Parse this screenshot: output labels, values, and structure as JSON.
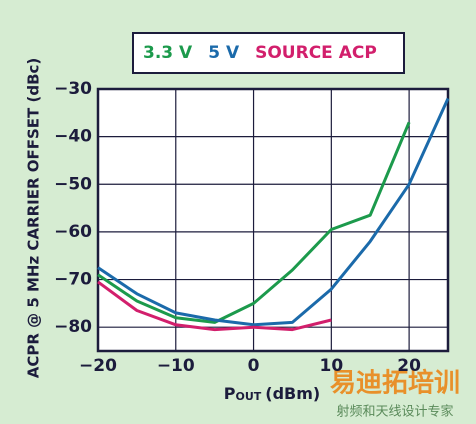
{
  "chart_data": {
    "type": "line",
    "y_label": "ACPR @ 5 MHz CARRIER OFFSET (dBc)",
    "x_label": {
      "symbol": "P",
      "subscript": "OUT",
      "unit": "(dBm)"
    },
    "x": [
      -20,
      -15,
      -10,
      -5,
      0,
      5,
      10,
      15,
      20,
      25
    ],
    "series": [
      {
        "name": "3.3 V",
        "color": "#1c9a4c",
        "values": [
          -69,
          -74.5,
          -78,
          -79,
          -75,
          -68,
          -59.5,
          -56.5,
          -37,
          null
        ]
      },
      {
        "name": "5 V",
        "color": "#1b6aaa",
        "values": [
          -67.5,
          -73,
          -77,
          -78.5,
          -79.5,
          -79,
          -72,
          -62,
          -50,
          -32
        ]
      },
      {
        "name": "SOURCE ACP",
        "color": "#d21f6c",
        "values": [
          -70.5,
          -76.5,
          -79.5,
          -80.5,
          -80,
          -80.5,
          -78.5,
          null,
          null,
          null
        ]
      }
    ],
    "xlim": [
      -20,
      25
    ],
    "ylim": [
      -85,
      -30
    ],
    "xticks": [
      {
        "value": -20,
        "label": "−20"
      },
      {
        "value": -10,
        "label": "−10"
      },
      0,
      10,
      20
    ],
    "yticks": [
      {
        "value": -30,
        "label": "−30"
      },
      {
        "value": -40,
        "label": "−40"
      },
      {
        "value": -50,
        "label": "−50"
      },
      {
        "value": -60,
        "label": "−60"
      },
      {
        "value": -70,
        "label": "−70"
      },
      {
        "value": -80,
        "label": "−80"
      }
    ],
    "grid": true
  },
  "watermark": {
    "brand": "易迪拓培训",
    "tagline": "射频和天线设计专家"
  }
}
